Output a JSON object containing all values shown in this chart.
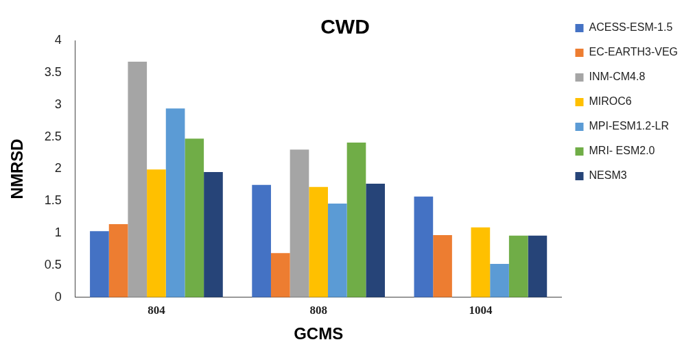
{
  "chart_data": {
    "type": "bar",
    "title": "CWD",
    "xlabel": "GCMS",
    "ylabel": "NMRSD",
    "categories": [
      "804",
      "808",
      "1004"
    ],
    "series": [
      {
        "name": "ACESS-ESM-1.5",
        "color": "#4472c4",
        "values": [
          1.03,
          1.75,
          1.57
        ]
      },
      {
        "name": "EC-EARTH3-VEG",
        "color": "#ed7d31",
        "values": [
          1.14,
          0.69,
          0.97
        ]
      },
      {
        "name": "INM-CM4.8",
        "color": "#a5a5a5",
        "values": [
          3.67,
          2.3,
          0
        ]
      },
      {
        "name": "MIROC6",
        "color": "#ffc000",
        "values": [
          1.99,
          1.72,
          1.09
        ]
      },
      {
        "name": "MPI-ESM1.2-LR",
        "color": "#5b9bd5",
        "values": [
          2.94,
          1.46,
          0.52
        ]
      },
      {
        "name": "MRI- ESM2.0",
        "color": "#70ad47",
        "values": [
          2.47,
          2.41,
          0.96
        ]
      },
      {
        "name": "NESM3",
        "color": "#264478",
        "values": [
          1.95,
          1.77,
          0.96
        ]
      }
    ],
    "ylim": [
      0,
      4
    ],
    "yticks": [
      0,
      0.5,
      1,
      1.5,
      2,
      2.5,
      3,
      3.5,
      4
    ],
    "grid": false,
    "legend": "right"
  }
}
